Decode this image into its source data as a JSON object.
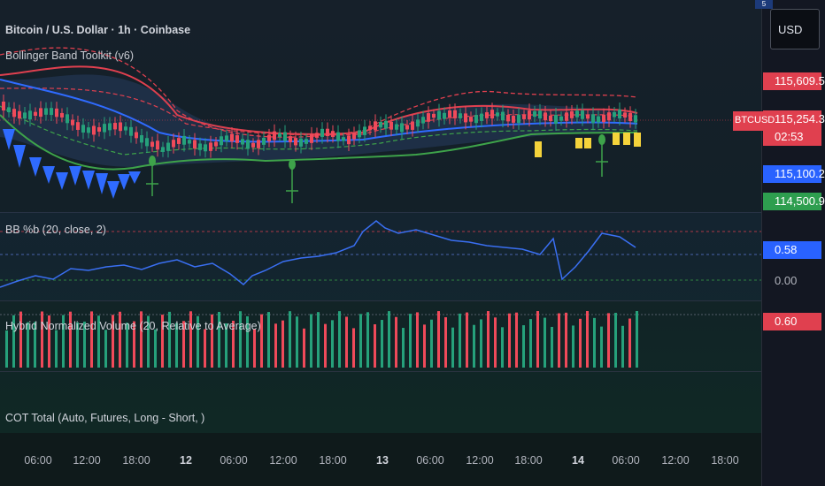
{
  "header": {
    "symbol_title": "Bitcoin / U.S. Dollar · 1h · Coinbase",
    "indicator_label": "Bollinger Band Toolkit (v6)",
    "corner_badge": "5"
  },
  "panes": {
    "bbpb_label": "BB %b (20, close, 2)",
    "volume_label": "Hybrid Normalized Volume (20, Relative to Average)",
    "cot_label": "COT Total (Auto, Futures, Long - Short, )"
  },
  "price_axis": {
    "currency": "USD",
    "labels": [
      {
        "text": "115,609.58",
        "style": "red"
      },
      {
        "text": "115,254.32",
        "style": "red"
      },
      {
        "text": "02:53",
        "style": "red"
      },
      {
        "text": "115,100.29",
        "style": "blue"
      },
      {
        "text": "114,500.99",
        "style": "green"
      }
    ],
    "bbpb_labels": [
      {
        "text": "0.58",
        "style": "blue"
      },
      {
        "text": "0.00",
        "style": "plain"
      }
    ],
    "volume_labels": [
      {
        "text": "0.60",
        "style": "red"
      }
    ],
    "symbol_tag": "BTCUSD"
  },
  "time_axis": {
    "ticks": [
      {
        "label": "06:00",
        "bold": false
      },
      {
        "label": "12:00",
        "bold": false
      },
      {
        "label": "18:00",
        "bold": false
      },
      {
        "label": "12",
        "bold": true
      },
      {
        "label": "06:00",
        "bold": false
      },
      {
        "label": "12:00",
        "bold": false
      },
      {
        "label": "18:00",
        "bold": false
      },
      {
        "label": "13",
        "bold": true
      },
      {
        "label": "06:00",
        "bold": false
      },
      {
        "label": "12:00",
        "bold": false
      },
      {
        "label": "18:00",
        "bold": false
      },
      {
        "label": "14",
        "bold": true
      },
      {
        "label": "06:00",
        "bold": false
      },
      {
        "label": "12:00",
        "bold": false
      },
      {
        "label": "18:00",
        "bold": false
      }
    ]
  },
  "colors": {
    "up": "#26a17b",
    "down": "#ef4a5a",
    "basis": "#2f6bff",
    "upper": "#e0404f",
    "lower": "#3ea34a",
    "signal": "#f5d33b",
    "bbpb_line": "#3a6ff2"
  }
}
